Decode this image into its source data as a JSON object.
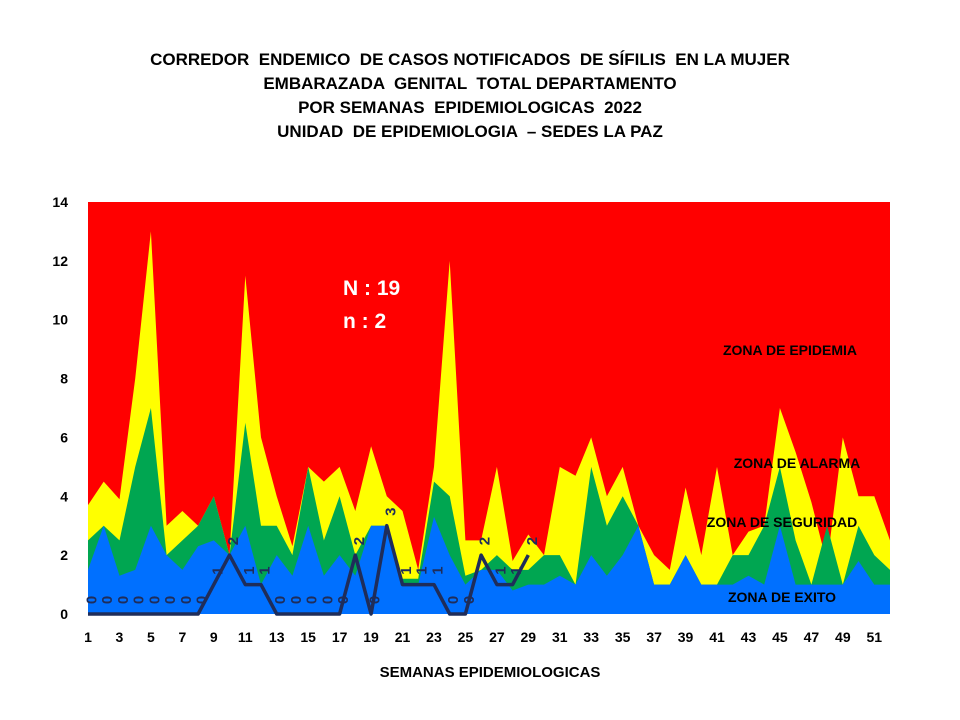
{
  "title_lines": [
    "CORREDOR  ENDEMICO  DE CASOS NOTIFICADOS  DE SÍFILIS  EN LA MUJER",
    "EMBARAZADA  GENITAL  TOTAL DEPARTAMENTO",
    "POR SEMANAS  EPIDEMIOLOGICAS  2022",
    "UNIDAD  DE EPIDEMIOLOGIA  – SEDES LA PAZ"
  ],
  "chart_data": {
    "type": "area",
    "xlabel": "SEMANAS EPIDEMIOLOGICAS",
    "ylabel": "",
    "ylim": [
      0,
      14
    ],
    "yticks": [
      0,
      2,
      4,
      6,
      8,
      10,
      12,
      14
    ],
    "x": [
      1,
      2,
      3,
      4,
      5,
      6,
      7,
      8,
      9,
      10,
      11,
      12,
      13,
      14,
      15,
      16,
      17,
      18,
      19,
      20,
      21,
      22,
      23,
      24,
      25,
      26,
      27,
      28,
      29,
      30,
      31,
      32,
      33,
      34,
      35,
      36,
      37,
      38,
      39,
      40,
      41,
      42,
      43,
      44,
      45,
      46,
      47,
      48,
      49,
      50,
      51,
      52
    ],
    "x_tick_labels": [
      "1",
      "3",
      "5",
      "7",
      "9",
      "11",
      "13",
      "15",
      "17",
      "19",
      "21",
      "23",
      "25",
      "27",
      "29",
      "31",
      "33",
      "35",
      "37",
      "39",
      "41",
      "43",
      "45",
      "47",
      "49",
      "51"
    ],
    "zones": [
      {
        "name": "ZONA DE EPIDEMIA",
        "color": "#ff0000",
        "values": [
          14,
          14,
          14,
          14,
          14,
          14,
          14,
          14,
          14,
          14,
          14,
          14,
          14,
          14,
          14,
          14,
          14,
          14,
          14,
          14,
          14,
          14,
          14,
          14,
          14,
          14,
          14,
          14,
          14,
          14,
          14,
          14,
          14,
          14,
          14,
          14,
          14,
          14,
          14,
          14,
          14,
          14,
          14,
          14,
          14,
          14,
          14,
          14,
          14,
          14,
          14,
          14
        ]
      },
      {
        "name": "ZONA DE ALARMA",
        "color": "#ffff00",
        "values": [
          3.7,
          4.5,
          3.9,
          8,
          13,
          3,
          3.5,
          3,
          4,
          2,
          11.5,
          6,
          4,
          2.3,
          5,
          4.5,
          5,
          3.5,
          5.7,
          4,
          3.5,
          1.5,
          5,
          12,
          2.5,
          2.5,
          5,
          1.8,
          2.7,
          2,
          5,
          4.7,
          6,
          4,
          5,
          3,
          2,
          1.5,
          4.3,
          2,
          5,
          2,
          2.8,
          3,
          7,
          5.5,
          3.8,
          1.7,
          6,
          4,
          4,
          2.5
        ]
      },
      {
        "name": "ZONA DE  SEGURIDAD",
        "color": "#00a651",
        "values": [
          2.5,
          3,
          2.5,
          5,
          7,
          2,
          2.5,
          3,
          4,
          2,
          6.5,
          3,
          3,
          2,
          5,
          2.5,
          4,
          2,
          3,
          3,
          1.2,
          1.2,
          4.5,
          4,
          1.3,
          1.5,
          2,
          1.5,
          1.5,
          2,
          2,
          1,
          5,
          3,
          4,
          3,
          1,
          1,
          2,
          1,
          1,
          2,
          2,
          3,
          5,
          2.5,
          1,
          3,
          1,
          3,
          2,
          1.5
        ]
      },
      {
        "name": "ZONA DE  EXITO",
        "color": "#0070ff",
        "values": [
          1.5,
          3,
          1.3,
          1.5,
          3,
          2,
          1.5,
          2.3,
          2.5,
          2,
          3,
          1,
          2,
          1.3,
          3,
          1.3,
          2,
          1.3,
          3,
          3,
          1,
          1,
          3.3,
          2,
          1,
          1.5,
          1.5,
          0.8,
          1,
          1,
          1.3,
          1,
          2,
          1.3,
          2,
          3,
          1,
          1,
          2,
          1,
          1,
          1,
          1.3,
          1,
          3,
          1,
          1,
          1,
          1,
          1.8,
          1,
          1
        ]
      }
    ],
    "series": [
      {
        "name": "",
        "color": "#1f2d5a",
        "x": [
          1,
          2,
          3,
          4,
          5,
          6,
          7,
          8,
          9,
          10,
          11,
          12,
          13,
          14,
          15,
          16,
          17,
          18,
          19,
          20,
          21,
          22,
          23,
          24,
          25,
          26,
          27,
          28,
          29
        ],
        "values": [
          0,
          0,
          0,
          0,
          0,
          0,
          0,
          0,
          1,
          2,
          1,
          1,
          0,
          0,
          0,
          0,
          0,
          2,
          0,
          3,
          1,
          1,
          1,
          0,
          0,
          2,
          1,
          1,
          2
        ]
      }
    ],
    "annotations": [
      "N : 19",
      "n : 2"
    ],
    "grid": false
  }
}
